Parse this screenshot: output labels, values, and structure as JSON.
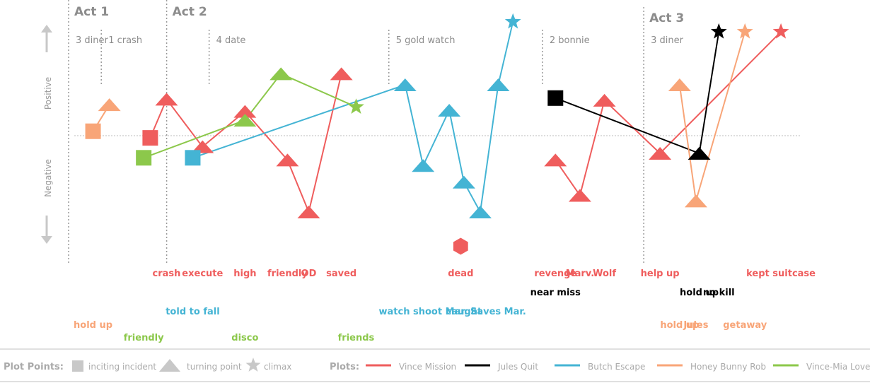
{
  "chart_data": {
    "type": "line",
    "title": "",
    "ylabel_positive": "Positive",
    "ylabel_negative": "Negative",
    "acts": [
      {
        "label": "Act 1",
        "x": 0
      },
      {
        "label": "Act 2",
        "x": 3
      },
      {
        "label": "Act 3",
        "x": 17.6
      }
    ],
    "scenes": [
      {
        "label": "3 diner",
        "x": 0
      },
      {
        "label": "1 crash",
        "x": 1
      },
      {
        "label": "4 date",
        "x": 4.3
      },
      {
        "label": "5 gold watch",
        "x": 9.8
      },
      {
        "label": "2 bonnie",
        "x": 14.5
      },
      {
        "label": "3 diner",
        "x": 17.6
      }
    ],
    "plots": [
      {
        "name": "Vince Mission",
        "color": "#ef5d5d",
        "points": [
          {
            "x": 2,
            "y": -0.1,
            "marker": "square",
            "label": ""
          },
          {
            "x": 2.5,
            "y": 1.65,
            "marker": "triangle",
            "label": "crash"
          },
          {
            "x": 3.6,
            "y": -0.5,
            "marker": "triangle",
            "label": "execute"
          },
          {
            "x": 4.9,
            "y": 1.1,
            "marker": "triangle",
            "label": "high"
          },
          {
            "x": 6.2,
            "y": -1.1,
            "marker": "triangle",
            "label": "friendly"
          },
          {
            "x": 6.85,
            "y": -3.45,
            "marker": "triangle",
            "label": "OD"
          },
          {
            "x": 7.85,
            "y": 2.8,
            "marker": "triangle",
            "label": "saved"
          },
          {
            "x": 14.4,
            "y": -1.1,
            "marker": "triangle",
            "label": "revenge"
          },
          {
            "x": 15.15,
            "y": -2.7,
            "marker": "triangle",
            "label": "Marv."
          },
          {
            "x": 15.9,
            "y": 1.6,
            "marker": "triangle",
            "label": "Wolf"
          },
          {
            "x": 17.6,
            "y": -0.8,
            "marker": "triangle",
            "label": "help up"
          },
          {
            "x": 21.3,
            "y": 4.7,
            "marker": "star",
            "label": "kept suitcase"
          }
        ]
      },
      {
        "name": "Vince Mission (dead)",
        "color": "#ef5d5d",
        "legend": false,
        "points": [
          {
            "x": 11.5,
            "y": -5.0,
            "marker": "hexagon",
            "label": "dead"
          }
        ]
      },
      {
        "name": "Jules Quit",
        "color": "#000000",
        "points": [
          {
            "x": 14.4,
            "y": 1.7,
            "marker": "square",
            "label": "near miss"
          },
          {
            "x": 18.8,
            "y": -0.8,
            "marker": "triangle",
            "label": "hold up"
          },
          {
            "x": 19.4,
            "y": 4.7,
            "marker": "star",
            "label": "no kill"
          }
        ]
      },
      {
        "name": "Butch Escape",
        "color": "#44b4d4",
        "points": [
          {
            "x": 3.3,
            "y": -1.0,
            "marker": "square",
            "label": "told to fall"
          },
          {
            "x": 9.8,
            "y": 2.3,
            "marker": "triangle",
            "label": ""
          },
          {
            "x": 10.35,
            "y": -1.35,
            "marker": "triangle",
            "label": "watch shoot Mar."
          },
          {
            "x": 11.15,
            "y": 1.15,
            "marker": "triangle",
            "label": ""
          },
          {
            "x": 11.6,
            "y": -2.1,
            "marker": "triangle",
            "label": "caught"
          },
          {
            "x": 12.1,
            "y": -3.45,
            "marker": "triangle",
            "label": ""
          },
          {
            "x": 12.65,
            "y": 2.3,
            "marker": "triangle",
            "label": "Saves Mar."
          },
          {
            "x": 13.1,
            "y": 5.15,
            "marker": "star",
            "label": ""
          }
        ]
      },
      {
        "name": "Honey Bunny Rob",
        "color": "#f8a578",
        "points": [
          {
            "x": 0.25,
            "y": 0.2,
            "marker": "square",
            "label": "hold up"
          },
          {
            "x": 0.75,
            "y": 1.4,
            "marker": "triangle",
            "label": ""
          },
          {
            "x": 18.2,
            "y": 2.3,
            "marker": "triangle",
            "label": "hold up"
          },
          {
            "x": 18.7,
            "y": -2.95,
            "marker": "triangle",
            "label": "Jules"
          },
          {
            "x": 20.2,
            "y": 4.7,
            "marker": "star",
            "label": "getaway"
          }
        ]
      },
      {
        "name": "Vince-Mia Love",
        "color": "#8cc84b",
        "points": [
          {
            "x": 1.8,
            "y": -1.0,
            "marker": "square",
            "label": "friendly"
          },
          {
            "x": 4.9,
            "y": 0.7,
            "marker": "triangle",
            "label": "disco"
          },
          {
            "x": 6.0,
            "y": 2.8,
            "marker": "triangle",
            "label": ""
          },
          {
            "x": 8.3,
            "y": 1.3,
            "marker": "star",
            "label": "friends"
          }
        ]
      }
    ],
    "legend": {
      "plot_points_label": "Plot Points:",
      "plot_points": [
        {
          "marker": "square",
          "label": "inciting incident"
        },
        {
          "marker": "triangle",
          "label": "turning point"
        },
        {
          "marker": "star",
          "label": "climax"
        }
      ],
      "plots_label": "Plots:"
    }
  }
}
